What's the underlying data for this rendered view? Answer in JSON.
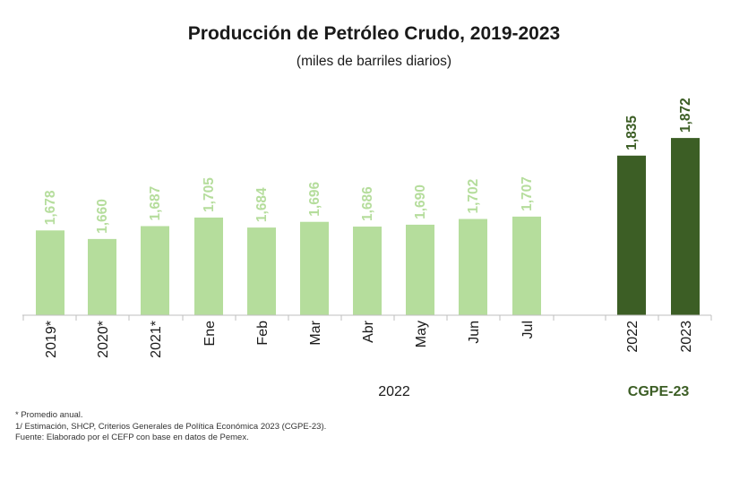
{
  "chart_data": {
    "type": "bar",
    "title": "Producción de Petróleo Crudo, 2019-2023",
    "subtitle": "(miles de barriles diarios)",
    "categories": [
      "2019*",
      "2020*",
      "2021*",
      "Ene",
      "Feb",
      "Mar",
      "Abr",
      "May",
      "Jun",
      "Jul",
      "2022",
      "2023"
    ],
    "values": [
      1678,
      1660,
      1687,
      1705,
      1684,
      1696,
      1686,
      1690,
      1702,
      1707,
      1835,
      1872
    ],
    "value_labels": [
      "1,678",
      "1,660",
      "1,687",
      "1,705",
      "1,684",
      "1,696",
      "1,686",
      "1,690",
      "1,702",
      "1,707",
      "1,835",
      "1,872"
    ],
    "groups": [
      {
        "label": "2022",
        "categories": [
          "Ene",
          "Feb",
          "Mar",
          "Abr",
          "May",
          "Jun",
          "Jul"
        ]
      },
      {
        "label": "CGPE-23",
        "categories": [
          "2022",
          "2023"
        ]
      }
    ],
    "ylim": [
      1500,
      1900
    ],
    "grid": false,
    "legend": "none",
    "colors": {
      "light": "#b5dd9c",
      "dark": "#3c5e25",
      "axis": "#bfbfbf"
    }
  },
  "notes": [
    "* Promedio anual.",
    "1/ Estimación, SHCP, Criterios Generales de Política Económica 2023 (CGPE-23).",
    "Fuente: Elaborado por el CEFP con base en datos de Pemex."
  ]
}
